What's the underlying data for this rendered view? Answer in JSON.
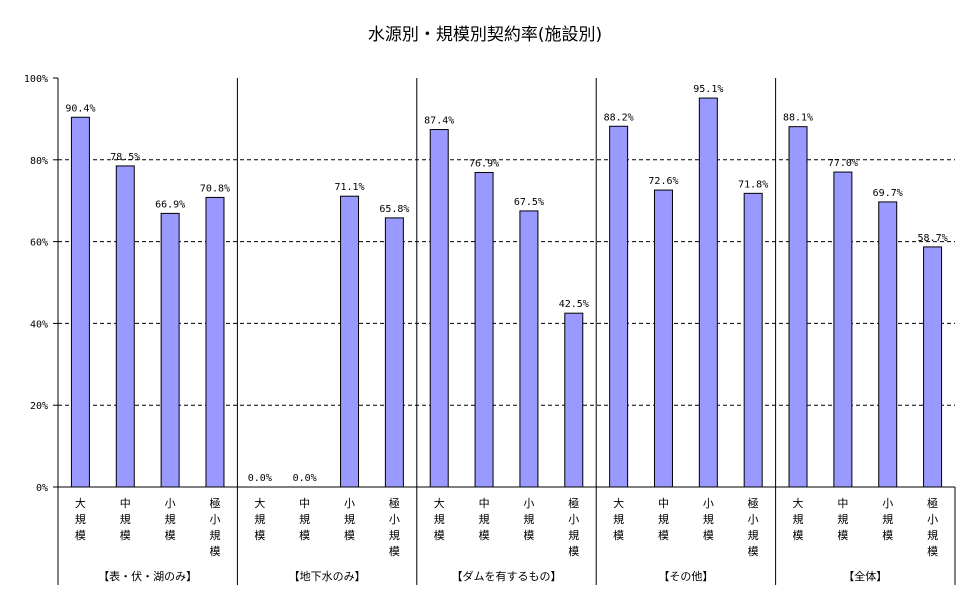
{
  "chart_data": {
    "type": "bar",
    "title": "水源別・規模別契約率(施設別)",
    "ylim": [
      0,
      100
    ],
    "y_ticks": [
      "0%",
      "20%",
      "40%",
      "60%",
      "80%",
      "100%"
    ],
    "grid": true,
    "legend": "none",
    "bar_color": "#9999ff",
    "groups": [
      {
        "label": "【表・伏・湖のみ】",
        "categories": [
          "大規模",
          "中規模",
          "小規模",
          "極小規模"
        ],
        "values": [
          90.4,
          78.5,
          66.9,
          70.8
        ],
        "value_labels": [
          "90.4%",
          "78.5%",
          "66.9%",
          "70.8%"
        ]
      },
      {
        "label": "【地下水のみ】",
        "categories": [
          "大規模",
          "中規模",
          "小規模",
          "極小規模"
        ],
        "values": [
          0.0,
          0.0,
          71.1,
          65.8
        ],
        "value_labels": [
          "0.0%",
          "0.0%",
          "71.1%",
          "65.8%"
        ]
      },
      {
        "label": "【ダムを有するもの】",
        "categories": [
          "大規模",
          "中規模",
          "小規模",
          "極小規模"
        ],
        "values": [
          87.4,
          76.9,
          67.5,
          42.5
        ],
        "value_labels": [
          "87.4%",
          "76.9%",
          "67.5%",
          "42.5%"
        ]
      },
      {
        "label": "【その他】",
        "categories": [
          "大規模",
          "中規模",
          "小規模",
          "極小規模"
        ],
        "values": [
          88.2,
          72.6,
          95.1,
          71.8
        ],
        "value_labels": [
          "88.2%",
          "72.6%",
          "95.1%",
          "71.8%"
        ]
      },
      {
        "label": "【全体】",
        "categories": [
          "大規模",
          "中規模",
          "小規模",
          "極小規模"
        ],
        "values": [
          88.1,
          77.0,
          69.7,
          58.7
        ],
        "value_labels": [
          "88.1%",
          "77.0%",
          "69.7%",
          "58.7%"
        ]
      }
    ]
  }
}
